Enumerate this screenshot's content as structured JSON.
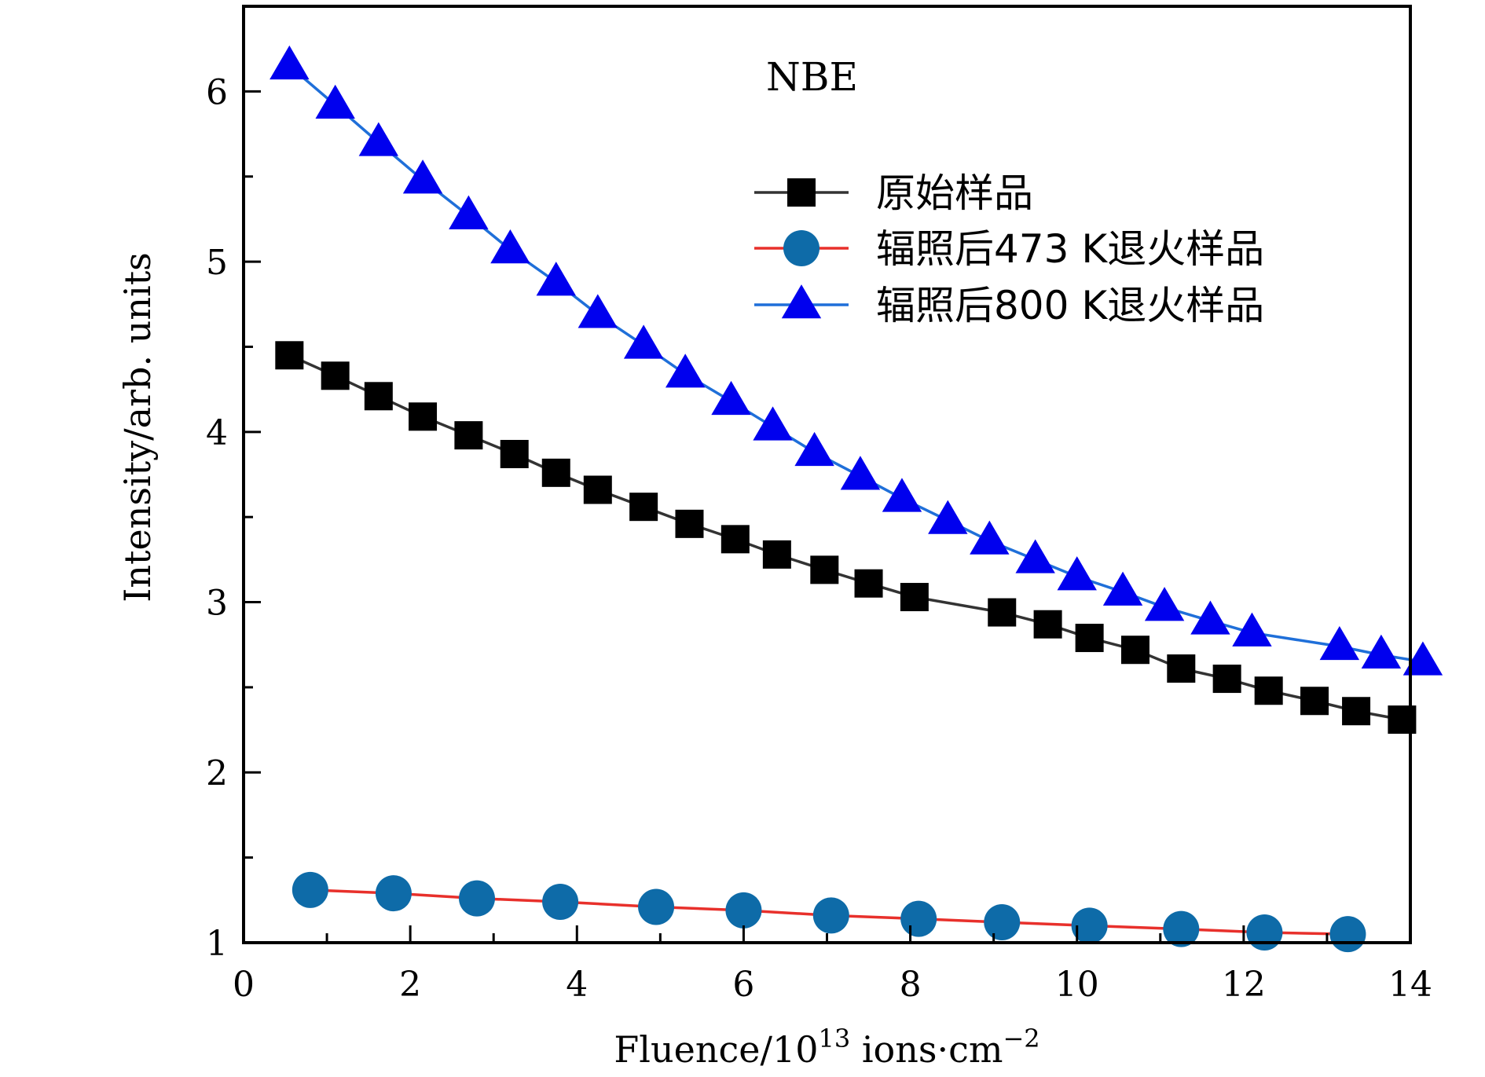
{
  "chart_data": {
    "type": "line",
    "annotation": "NBE",
    "xlabel": "Fluence/10",
    "xlabel_sup": "13",
    "xlabel_rest": " ions·cm",
    "xlabel_sup2": "−2",
    "ylabel": "Intensity/arb. units",
    "xlim": [
      0,
      14
    ],
    "ylim": [
      1,
      6.5
    ],
    "x_ticks": [
      "0",
      "2",
      "4",
      "6",
      "8",
      "10",
      "12",
      "14"
    ],
    "y_ticks": [
      "1",
      "2",
      "3",
      "4",
      "5",
      "6"
    ],
    "legend_position": "top-right",
    "series": [
      {
        "name": "原始样品",
        "marker": "square",
        "line_color": "#333333",
        "marker_color": "#000000",
        "x": [
          0.55,
          1.1,
          1.62,
          2.15,
          2.7,
          3.25,
          3.75,
          4.25,
          4.8,
          5.35,
          5.9,
          6.4,
          6.97,
          7.5,
          8.05,
          9.1,
          9.65,
          10.15,
          10.7,
          11.25,
          11.8,
          12.3,
          12.85,
          13.35,
          13.9
        ],
        "y": [
          4.45,
          4.33,
          4.21,
          4.09,
          3.98,
          3.87,
          3.76,
          3.66,
          3.56,
          3.46,
          3.37,
          3.28,
          3.19,
          3.11,
          3.03,
          2.94,
          2.87,
          2.79,
          2.72,
          2.61,
          2.55,
          2.48,
          2.42,
          2.36,
          2.31
        ]
      },
      {
        "name": "辐照后473 K退火样品",
        "marker": "circle",
        "line_color": "#e8302b",
        "marker_color": "#0e6ba8",
        "x": [
          0.8,
          1.8,
          2.8,
          3.8,
          4.95,
          6.0,
          7.05,
          8.1,
          9.1,
          10.15,
          11.25,
          12.25,
          13.25
        ],
        "y": [
          1.31,
          1.29,
          1.26,
          1.24,
          1.21,
          1.19,
          1.16,
          1.14,
          1.12,
          1.1,
          1.08,
          1.06,
          1.05
        ]
      },
      {
        "name": "辐照后800 K退火样品",
        "marker": "triangle",
        "line_color": "#1f6fd9",
        "marker_color": "#0000ee",
        "x": [
          0.55,
          1.1,
          1.62,
          2.15,
          2.7,
          3.2,
          3.75,
          4.25,
          4.8,
          5.3,
          5.85,
          6.35,
          6.85,
          7.4,
          7.9,
          8.45,
          8.95,
          9.5,
          10.0,
          10.55,
          11.05,
          11.6,
          12.1,
          13.15,
          13.65,
          14.15
        ],
        "y": [
          6.15,
          5.92,
          5.7,
          5.48,
          5.27,
          5.07,
          4.88,
          4.69,
          4.51,
          4.34,
          4.18,
          4.03,
          3.88,
          3.74,
          3.61,
          3.48,
          3.36,
          3.25,
          3.15,
          3.06,
          2.97,
          2.89,
          2.82,
          2.74,
          2.69,
          2.65
        ]
      }
    ]
  }
}
